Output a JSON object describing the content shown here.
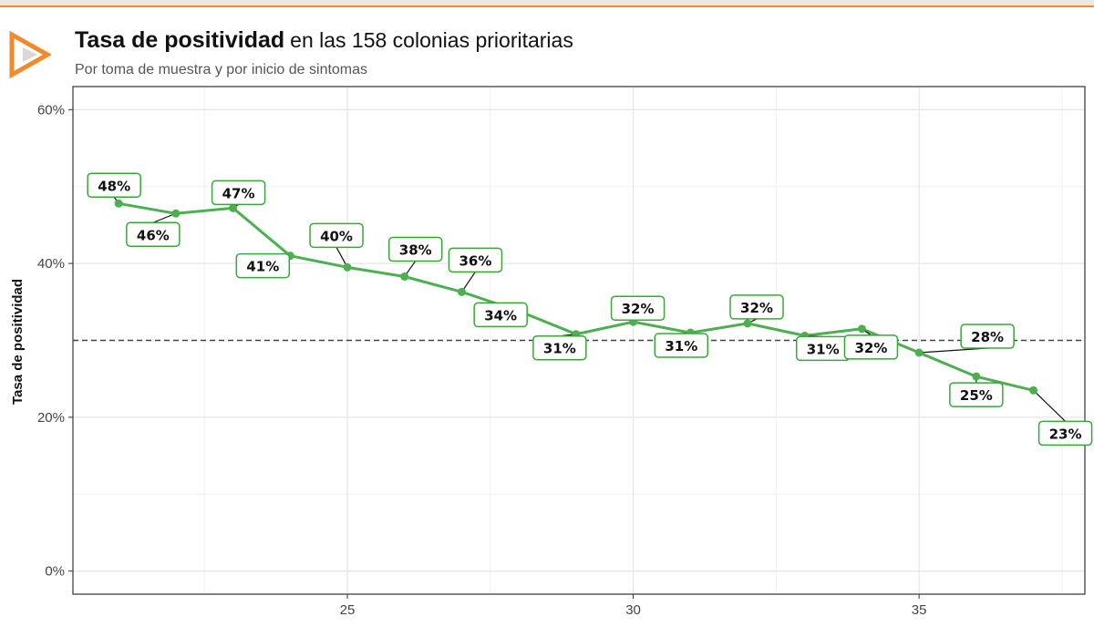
{
  "header": {
    "title_bold": "Tasa de positividad",
    "title_rest": "en las 158 colonias prioritarias",
    "subtitle": "Por toma de muestra y por inicio de sintomas",
    "logo_icon": "play-arrow-logo-icon"
  },
  "colors": {
    "line": "#4caf50",
    "label_border": "#3aa63a",
    "accent": "#f08a2c",
    "reference_line": "#444444",
    "grid": "#e6e6e6"
  },
  "chart_data": {
    "type": "line",
    "title": "Tasa de positividad",
    "subtitle": "Por toma de muestra y por inicio de sintomas",
    "xlabel": "",
    "ylabel": "Tasa de positividad",
    "x": [
      21,
      22,
      23,
      24,
      25,
      26,
      27,
      28,
      29,
      30,
      31,
      32,
      33,
      34,
      35,
      36,
      37
    ],
    "values": [
      47.8,
      46.5,
      47.2,
      41.0,
      39.5,
      38.3,
      36.3,
      33.8,
      30.8,
      32.4,
      31.0,
      32.2,
      30.6,
      31.5,
      28.4,
      25.3,
      23.5
    ],
    "labels": [
      "48%",
      "46%",
      "47%",
      "41%",
      "40%",
      "38%",
      "36%",
      "34%",
      "31%",
      "32%",
      "31%",
      "32%",
      "31%",
      "32%",
      "28%",
      "25%",
      "23%"
    ],
    "xticks": [
      25,
      30,
      35
    ],
    "xtick_labels": [
      "25",
      "30",
      "35"
    ],
    "yticks": [
      0,
      20,
      40,
      60
    ],
    "ytick_labels": [
      "0%",
      "20%",
      "40%",
      "60%"
    ],
    "xlim": [
      20.2,
      37.9
    ],
    "ylim": [
      -3,
      63
    ],
    "reference_line": 30,
    "grid": true,
    "legend": "none"
  }
}
